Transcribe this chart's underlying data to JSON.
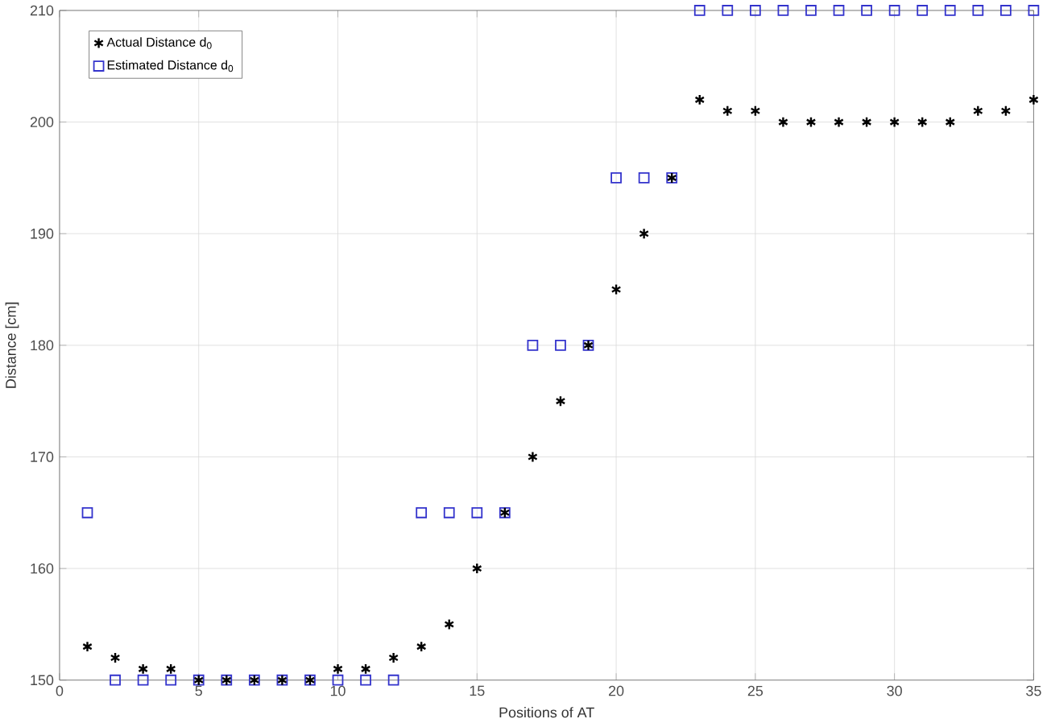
{
  "chart_data": {
    "type": "scatter",
    "xlabel": "Positions of AT",
    "ylabel": "Distance [cm]",
    "xlim": [
      0,
      35
    ],
    "ylim": [
      150,
      210
    ],
    "xticks": [
      0,
      5,
      10,
      15,
      20,
      25,
      30,
      35
    ],
    "yticks": [
      150,
      160,
      170,
      180,
      190,
      200,
      210
    ],
    "grid": true,
    "legend": "top left",
    "series": [
      {
        "name": "Actual Distance d$_{0}$",
        "color": "#000000",
        "marker": "cross",
        "x": [
          1,
          2,
          3,
          4,
          5,
          6,
          7,
          8,
          9,
          10,
          11,
          12,
          13,
          14,
          15,
          16,
          17,
          18,
          19,
          20,
          21,
          22,
          23,
          24,
          25,
          26,
          27,
          28,
          29,
          30,
          31,
          32,
          33,
          34,
          35
        ],
        "values": [
          153,
          152,
          151,
          151,
          150,
          150,
          150,
          150,
          150,
          151,
          151,
          152,
          153,
          155,
          160,
          165,
          170,
          175,
          180,
          185,
          190,
          195,
          202,
          201,
          201,
          200,
          200,
          200,
          200,
          200,
          200,
          200,
          201,
          201,
          202
        ]
      },
      {
        "name": "Estimated Distance d$_{0}$",
        "color": "#3333cc",
        "marker": "square",
        "x": [
          1,
          2,
          3,
          4,
          5,
          6,
          7,
          8,
          9,
          10,
          11,
          12,
          13,
          14,
          15,
          16,
          17,
          18,
          19,
          20,
          21,
          22,
          23,
          24,
          25,
          26,
          27,
          28,
          29,
          30,
          31,
          32,
          33,
          34,
          35
        ],
        "values": [
          165,
          150,
          150,
          150,
          150,
          150,
          150,
          150,
          150,
          150,
          150,
          150,
          165,
          165,
          165,
          165,
          180,
          180,
          180,
          195,
          195,
          195,
          210,
          210,
          210,
          210,
          210,
          210,
          210,
          210,
          210,
          210,
          210,
          210,
          210
        ]
      }
    ]
  }
}
